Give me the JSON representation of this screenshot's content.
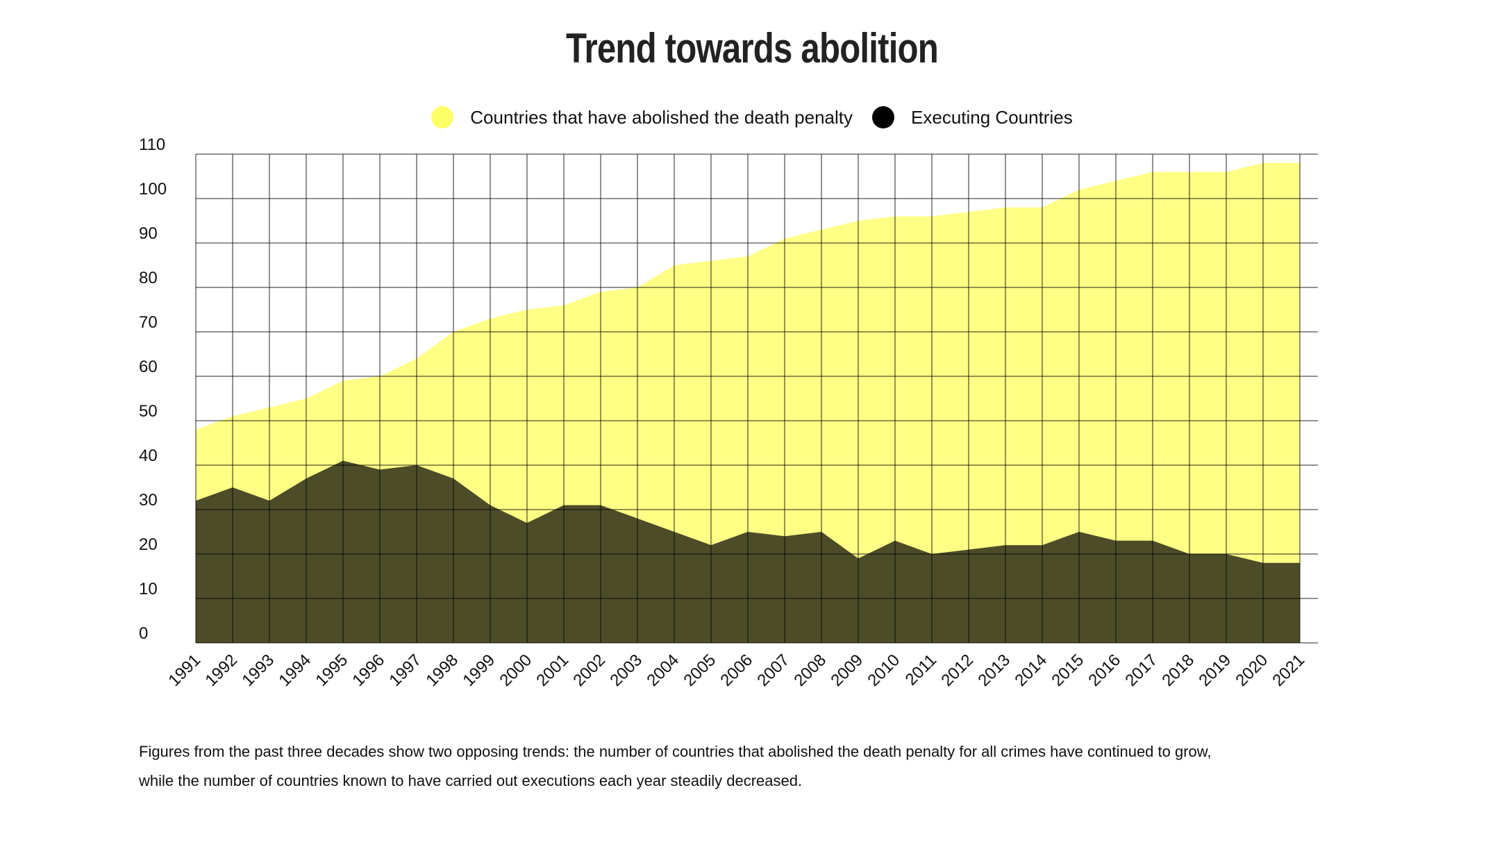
{
  "title": "Trend towards abolition",
  "caption": {
    "line1": "Figures from the past three decades show two opposing trends: the number of countries that abolished the death penalty for all crimes have continued to grow,",
    "line2": "while the number of countries known to have carried out executions each year steadily decreased."
  },
  "legend": [
    {
      "label": "Countries that have abolished the death penalty",
      "color": "#ffff66"
    },
    {
      "label": "Executing Countries",
      "color": "#000000"
    }
  ],
  "chart_data": {
    "type": "area",
    "x": [
      1991,
      1992,
      1993,
      1994,
      1995,
      1996,
      1997,
      1998,
      1999,
      2000,
      2001,
      2002,
      2003,
      2004,
      2005,
      2006,
      2007,
      2008,
      2009,
      2010,
      2011,
      2012,
      2013,
      2014,
      2015,
      2016,
      2017,
      2018,
      2019,
      2020,
      2021
    ],
    "series": [
      {
        "name": "Countries that have abolished the death penalty",
        "color": "#ffff66",
        "values": [
          48,
          51,
          53,
          55,
          59,
          60,
          64,
          70,
          73,
          75,
          76,
          79,
          80,
          85,
          86,
          87,
          91,
          93,
          95,
          96,
          96,
          97,
          98,
          98,
          102,
          104,
          106,
          106,
          106,
          108,
          108
        ]
      },
      {
        "name": "Executing Countries",
        "color": "#000000",
        "values": [
          32,
          35,
          32,
          37,
          41,
          39,
          40,
          37,
          31,
          27,
          31,
          31,
          28,
          25,
          22,
          25,
          24,
          25,
          19,
          23,
          20,
          21,
          22,
          22,
          25,
          23,
          23,
          20,
          20,
          18,
          18
        ]
      }
    ],
    "ylim": [
      0,
      110
    ],
    "yticks": [
      0,
      10,
      20,
      30,
      40,
      50,
      60,
      70,
      80,
      90,
      100,
      110
    ],
    "xlabel": "",
    "ylabel": "",
    "grid": true,
    "legend_position": "top-center"
  }
}
